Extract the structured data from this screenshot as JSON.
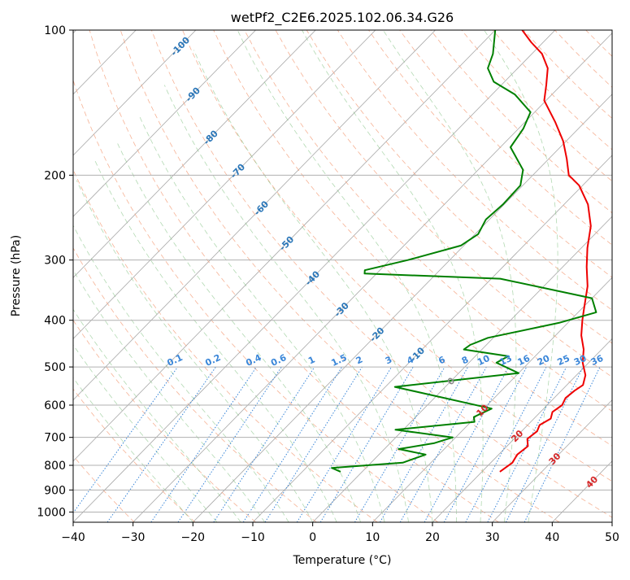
{
  "chart_data": {
    "type": "skew-t",
    "title": "wetPf2_C2E6.2025.102.06.34.G26",
    "xlabel": "Temperature (°C)",
    "ylabel": "Pressure (hPa)",
    "xlim": [
      -40,
      50
    ],
    "ylim": [
      1050,
      100
    ],
    "y_scale": "log",
    "x_ticks": [
      -40,
      -30,
      -20,
      -10,
      0,
      10,
      20,
      30,
      40,
      50
    ],
    "x_tick_labels": [
      "−40",
      "−30",
      "−20",
      "−10",
      "0",
      "10",
      "20",
      "30",
      "40",
      "50"
    ],
    "y_ticks": [
      1000,
      900,
      800,
      700,
      600,
      500,
      400,
      300,
      200,
      100
    ],
    "y_tick_labels": [
      "1000",
      "900",
      "800",
      "700",
      "600",
      "500",
      "400",
      "300",
      "200",
      "100"
    ],
    "grid": true,
    "isotherm_labels": [
      "-100",
      "-90",
      "-80",
      "-70",
      "-60",
      "-50",
      "-40",
      "-30",
      "-20",
      "-10",
      "0",
      "10",
      "20",
      "30",
      "40"
    ],
    "isotherm_label_values": [
      -100,
      -90,
      -80,
      -70,
      -60,
      -50,
      -40,
      -30,
      -20,
      -10,
      0,
      10,
      20,
      30,
      40
    ],
    "mixing_ratio_labels": [
      "0.1",
      "0.2",
      "0.4",
      "0.6",
      "1",
      "1.5",
      "2",
      "3",
      "4",
      "6",
      "8",
      "10",
      "13",
      "16",
      "20",
      "25",
      "30",
      "36"
    ],
    "mixing_ratio_values": [
      0.1,
      0.2,
      0.4,
      0.6,
      1,
      1.5,
      2,
      3,
      4,
      6,
      8,
      10,
      13,
      16,
      20,
      25,
      30,
      36
    ],
    "series": [
      {
        "color": "#ee0000",
        "points": [
          {
            "t": 23.0,
            "p": 825
          },
          {
            "t": 23.6,
            "p": 790
          },
          {
            "t": 23.1,
            "p": 760
          },
          {
            "t": 23.5,
            "p": 730
          },
          {
            "t": 22.2,
            "p": 705
          },
          {
            "t": 22.6,
            "p": 680
          },
          {
            "t": 22.0,
            "p": 660
          },
          {
            "t": 22.8,
            "p": 640
          },
          {
            "t": 22.0,
            "p": 620
          },
          {
            "t": 22.5,
            "p": 600
          },
          {
            "t": 21.9,
            "p": 580
          },
          {
            "t": 22.2,
            "p": 560
          },
          {
            "t": 22.7,
            "p": 545
          },
          {
            "t": 21.5,
            "p": 520
          },
          {
            "t": 19.0,
            "p": 490
          },
          {
            "t": 17.0,
            "p": 460
          },
          {
            "t": 14.3,
            "p": 430
          },
          {
            "t": 12.0,
            "p": 400
          },
          {
            "t": 10.5,
            "p": 380
          },
          {
            "t": 7.3,
            "p": 340
          },
          {
            "t": 4.0,
            "p": 310
          },
          {
            "t": 1.0,
            "p": 283
          },
          {
            "t": -2.0,
            "p": 255
          },
          {
            "t": -6.0,
            "p": 230
          },
          {
            "t": -10.6,
            "p": 210
          },
          {
            "t": -14.0,
            "p": 200
          },
          {
            "t": -17.0,
            "p": 185
          },
          {
            "t": -20.5,
            "p": 170
          },
          {
            "t": -25.0,
            "p": 155
          },
          {
            "t": -30.3,
            "p": 140
          },
          {
            "t": -32.5,
            "p": 130
          },
          {
            "t": -35.0,
            "p": 120
          },
          {
            "t": -38.3,
            "p": 112
          },
          {
            "t": -42.0,
            "p": 106
          },
          {
            "t": -45.5,
            "p": 100
          }
        ]
      },
      {
        "color": "#008000",
        "points": [
          {
            "t": -3.6,
            "p": 825
          },
          {
            "t": -5.7,
            "p": 810
          },
          {
            "t": 5.3,
            "p": 790
          },
          {
            "t": 7.8,
            "p": 760
          },
          {
            "t": 2.4,
            "p": 740
          },
          {
            "t": 7.3,
            "p": 720
          },
          {
            "t": 9.5,
            "p": 700
          },
          {
            "t": -1.3,
            "p": 675
          },
          {
            "t": 10.6,
            "p": 650
          },
          {
            "t": 9.7,
            "p": 635
          },
          {
            "t": 11.3,
            "p": 610
          },
          {
            "t": -8.4,
            "p": 550
          },
          {
            "t": 10.0,
            "p": 515
          },
          {
            "t": 4.6,
            "p": 490
          },
          {
            "t": 5.5,
            "p": 475
          },
          {
            "t": -3.0,
            "p": 460
          },
          {
            "t": -2.7,
            "p": 450
          },
          {
            "t": -0.9,
            "p": 435
          },
          {
            "t": 8.5,
            "p": 405
          },
          {
            "t": 13.0,
            "p": 385
          },
          {
            "t": 10.0,
            "p": 360
          },
          {
            "t": -8.5,
            "p": 328
          },
          {
            "t": -32.0,
            "p": 320
          },
          {
            "t": -32.5,
            "p": 315
          },
          {
            "t": -27.0,
            "p": 300
          },
          {
            "t": -20.5,
            "p": 280
          },
          {
            "t": -19.5,
            "p": 265
          },
          {
            "t": -20.6,
            "p": 247
          },
          {
            "t": -20.2,
            "p": 230
          },
          {
            "t": -20.4,
            "p": 210
          },
          {
            "t": -22.5,
            "p": 195
          },
          {
            "t": -28.3,
            "p": 175
          },
          {
            "t": -29.2,
            "p": 160
          },
          {
            "t": -30.7,
            "p": 148
          },
          {
            "t": -36.2,
            "p": 136
          },
          {
            "t": -41.8,
            "p": 128
          },
          {
            "t": -45.0,
            "p": 120
          },
          {
            "t": -46.5,
            "p": 112
          },
          {
            "t": -50.0,
            "p": 100
          }
        ]
      }
    ]
  }
}
